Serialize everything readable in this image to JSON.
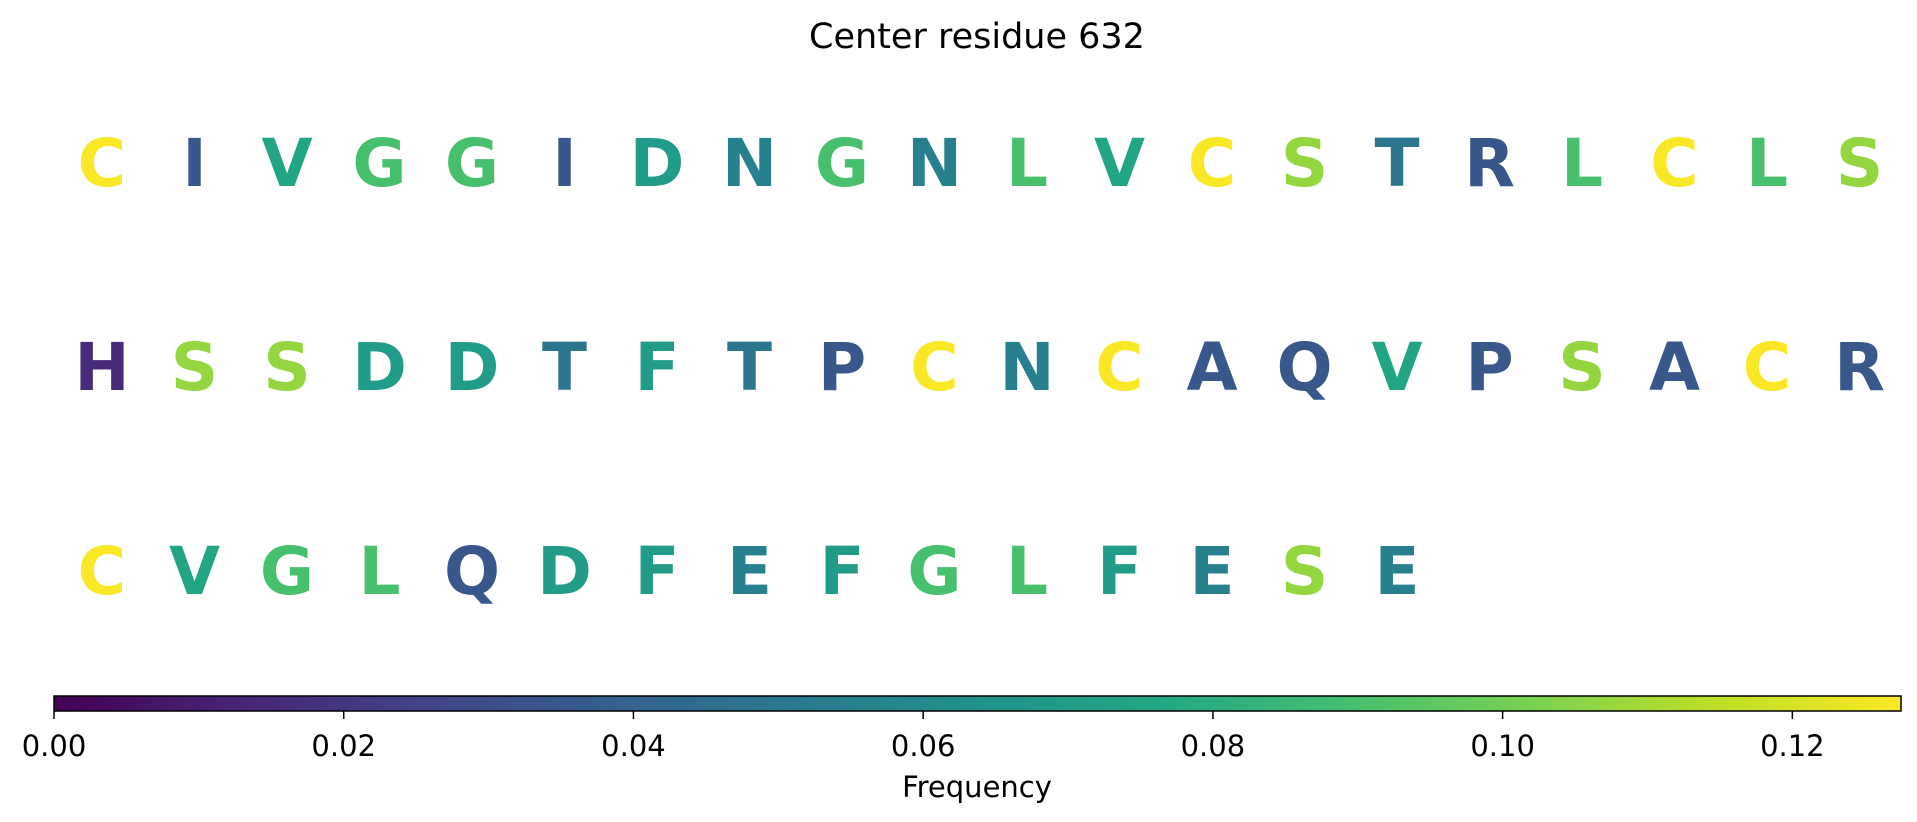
{
  "chart_data": {
    "type": "heatmap",
    "title": "Center residue 632",
    "colormap": "viridis",
    "residues": [
      {
        "letter": "C",
        "frequency": 0.127
      },
      {
        "letter": "I",
        "frequency": 0.035
      },
      {
        "letter": "V",
        "frequency": 0.075
      },
      {
        "letter": "G",
        "frequency": 0.09
      },
      {
        "letter": "G",
        "frequency": 0.09
      },
      {
        "letter": "I",
        "frequency": 0.035
      },
      {
        "letter": "D",
        "frequency": 0.07
      },
      {
        "letter": "N",
        "frequency": 0.055
      },
      {
        "letter": "G",
        "frequency": 0.09
      },
      {
        "letter": "N",
        "frequency": 0.055
      },
      {
        "letter": "L",
        "frequency": 0.09
      },
      {
        "letter": "V",
        "frequency": 0.075
      },
      {
        "letter": "C",
        "frequency": 0.127
      },
      {
        "letter": "S",
        "frequency": 0.107
      },
      {
        "letter": "T",
        "frequency": 0.05
      },
      {
        "letter": "R",
        "frequency": 0.035
      },
      {
        "letter": "L",
        "frequency": 0.09
      },
      {
        "letter": "C",
        "frequency": 0.127
      },
      {
        "letter": "L",
        "frequency": 0.09
      },
      {
        "letter": "S",
        "frequency": 0.107
      },
      {
        "letter": "H",
        "frequency": 0.015
      },
      {
        "letter": "S",
        "frequency": 0.107
      },
      {
        "letter": "S",
        "frequency": 0.107
      },
      {
        "letter": "D",
        "frequency": 0.07
      },
      {
        "letter": "D",
        "frequency": 0.07
      },
      {
        "letter": "T",
        "frequency": 0.05
      },
      {
        "letter": "F",
        "frequency": 0.07
      },
      {
        "letter": "T",
        "frequency": 0.05
      },
      {
        "letter": "P",
        "frequency": 0.035
      },
      {
        "letter": "C",
        "frequency": 0.127
      },
      {
        "letter": "N",
        "frequency": 0.055
      },
      {
        "letter": "C",
        "frequency": 0.127
      },
      {
        "letter": "A",
        "frequency": 0.035
      },
      {
        "letter": "Q",
        "frequency": 0.035
      },
      {
        "letter": "V",
        "frequency": 0.075
      },
      {
        "letter": "P",
        "frequency": 0.035
      },
      {
        "letter": "S",
        "frequency": 0.107
      },
      {
        "letter": "A",
        "frequency": 0.035
      },
      {
        "letter": "C",
        "frequency": 0.127
      },
      {
        "letter": "R",
        "frequency": 0.035
      },
      {
        "letter": "C",
        "frequency": 0.127
      },
      {
        "letter": "V",
        "frequency": 0.075
      },
      {
        "letter": "G",
        "frequency": 0.09
      },
      {
        "letter": "L",
        "frequency": 0.09
      },
      {
        "letter": "Q",
        "frequency": 0.035
      },
      {
        "letter": "D",
        "frequency": 0.07
      },
      {
        "letter": "F",
        "frequency": 0.07
      },
      {
        "letter": "E",
        "frequency": 0.055
      },
      {
        "letter": "F",
        "frequency": 0.07
      },
      {
        "letter": "G",
        "frequency": 0.09
      },
      {
        "letter": "L",
        "frequency": 0.09
      },
      {
        "letter": "F",
        "frequency": 0.07
      },
      {
        "letter": "E",
        "frequency": 0.055
      },
      {
        "letter": "S",
        "frequency": 0.107
      },
      {
        "letter": "E",
        "frequency": 0.055
      }
    ],
    "letters_per_row": 20,
    "colorbar": {
      "label": "Frequency",
      "range": [
        0,
        0.1275
      ],
      "ticks": [
        0.0,
        0.02,
        0.04,
        0.06,
        0.08,
        0.1,
        0.12
      ],
      "tick_labels": [
        "0.00",
        "0.02",
        "0.04",
        "0.06",
        "0.08",
        "0.10",
        "0.12"
      ],
      "orientation": "horizontal",
      "placement": "bottom"
    }
  }
}
